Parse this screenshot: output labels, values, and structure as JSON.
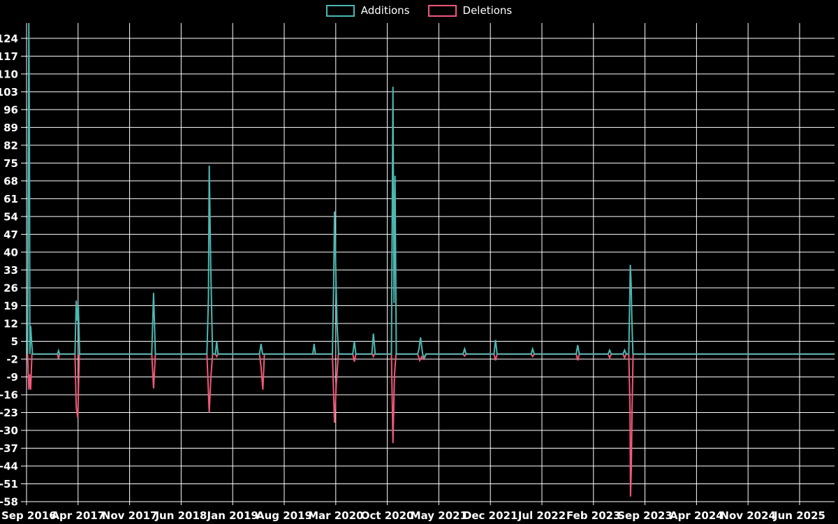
{
  "legend": {
    "items": [
      {
        "label": "Additions",
        "color": "#4bb8b1"
      },
      {
        "label": "Deletions",
        "color": "#f25878"
      }
    ]
  },
  "chart_data": {
    "type": "line",
    "title": "",
    "background": "#000000",
    "gridline_color": "#ffffff",
    "text_color": "#ffffff",
    "grid": true,
    "legend_position": "top-center",
    "x_axis": {
      "tick_labels": [
        "Sep 2016",
        "Apr 2017",
        "Nov 2017",
        "Jun 2018",
        "Jan 2019",
        "Aug 2019",
        "Mar 2020",
        "Oct 2020",
        "May 2021",
        "Dec 2021",
        "Jul 2022",
        "Feb 2023",
        "Sep 2023",
        "Apr 2024",
        "Nov 2024",
        "Jun 2025"
      ],
      "months_per_tick": 7
    },
    "y_axis": {
      "tick_values": [
        124,
        117,
        110,
        103,
        96,
        89,
        82,
        75,
        68,
        61,
        54,
        47,
        40,
        33,
        26,
        19,
        12,
        5,
        -2,
        -9,
        -16,
        -23,
        -30,
        -37,
        -44,
        -51,
        -58
      ],
      "tick_step": 7,
      "ylim": [
        -58,
        130
      ]
    },
    "series": [
      {
        "name": "Additions",
        "color": "#4bb8b1",
        "baseline": 0,
        "points": [
          [
            0.02,
            0
          ],
          [
            0.045,
            130
          ],
          [
            0.055,
            87
          ],
          [
            0.065,
            0
          ],
          [
            0.08,
            11
          ],
          [
            0.095,
            6
          ],
          [
            0.115,
            0
          ],
          [
            0.6,
            0
          ],
          [
            0.62,
            1.3
          ],
          [
            0.64,
            0
          ],
          [
            0.94,
            0
          ],
          [
            0.965,
            21
          ],
          [
            0.985,
            13
          ],
          [
            1.005,
            19
          ],
          [
            1.03,
            0
          ],
          [
            2.43,
            0
          ],
          [
            2.465,
            24
          ],
          [
            2.5,
            0
          ],
          [
            3.5,
            0
          ],
          [
            3.53,
            22
          ],
          [
            3.545,
            74
          ],
          [
            3.575,
            34
          ],
          [
            3.61,
            0
          ],
          [
            3.665,
            0
          ],
          [
            3.69,
            5
          ],
          [
            3.715,
            0
          ],
          [
            4.52,
            0
          ],
          [
            4.55,
            4
          ],
          [
            4.58,
            0
          ],
          [
            5.555,
            0
          ],
          [
            5.58,
            4
          ],
          [
            5.605,
            0
          ],
          [
            5.935,
            0
          ],
          [
            5.96,
            27
          ],
          [
            5.975,
            56
          ],
          [
            6.0,
            33
          ],
          [
            6.025,
            12
          ],
          [
            6.055,
            0
          ],
          [
            6.33,
            0
          ],
          [
            6.36,
            5
          ],
          [
            6.39,
            0
          ],
          [
            6.7,
            0
          ],
          [
            6.73,
            8
          ],
          [
            6.765,
            0
          ],
          [
            7.08,
            0
          ],
          [
            7.11,
            105
          ],
          [
            7.13,
            20
          ],
          [
            7.15,
            70
          ],
          [
            7.175,
            0
          ],
          [
            7.59,
            0
          ],
          [
            7.615,
            2
          ],
          [
            7.645,
            6.5
          ],
          [
            7.685,
            0
          ],
          [
            7.715,
            -1.5
          ],
          [
            7.755,
            0
          ],
          [
            8.47,
            0
          ],
          [
            8.5,
            2
          ],
          [
            8.53,
            0
          ],
          [
            9.07,
            0
          ],
          [
            9.1,
            5.5
          ],
          [
            9.13,
            0
          ],
          [
            9.79,
            0
          ],
          [
            9.82,
            2
          ],
          [
            9.85,
            0
          ],
          [
            10.665,
            0
          ],
          [
            10.695,
            3.5
          ],
          [
            10.725,
            0
          ],
          [
            11.285,
            0
          ],
          [
            11.315,
            1.5
          ],
          [
            11.345,
            0
          ],
          [
            11.575,
            0
          ],
          [
            11.605,
            1.5
          ],
          [
            11.635,
            0
          ],
          [
            11.685,
            0
          ],
          [
            11.715,
            35
          ],
          [
            11.73,
            28
          ],
          [
            11.745,
            14
          ],
          [
            11.765,
            0
          ],
          [
            15.68,
            0
          ]
        ]
      },
      {
        "name": "Deletions",
        "color": "#f25878",
        "baseline": 0,
        "points": [
          [
            0.02,
            0
          ],
          [
            0.045,
            -14
          ],
          [
            0.06,
            -8
          ],
          [
            0.08,
            -14
          ],
          [
            0.105,
            0
          ],
          [
            0.6,
            0
          ],
          [
            0.62,
            -1.8
          ],
          [
            0.64,
            0
          ],
          [
            0.94,
            0
          ],
          [
            0.965,
            -21
          ],
          [
            0.995,
            -25
          ],
          [
            1.025,
            0
          ],
          [
            2.43,
            0
          ],
          [
            2.465,
            -13.5
          ],
          [
            2.5,
            0
          ],
          [
            3.5,
            0
          ],
          [
            3.545,
            -23
          ],
          [
            3.575,
            -10
          ],
          [
            3.61,
            0
          ],
          [
            3.665,
            0
          ],
          [
            3.69,
            -1
          ],
          [
            3.715,
            0
          ],
          [
            4.52,
            0
          ],
          [
            4.55,
            -5
          ],
          [
            4.585,
            -14
          ],
          [
            4.615,
            0
          ],
          [
            5.935,
            0
          ],
          [
            5.975,
            -27
          ],
          [
            6.01,
            -12
          ],
          [
            6.05,
            0
          ],
          [
            6.33,
            0
          ],
          [
            6.36,
            -3
          ],
          [
            6.39,
            0
          ],
          [
            6.71,
            0
          ],
          [
            6.73,
            -1
          ],
          [
            6.75,
            0
          ],
          [
            7.08,
            0
          ],
          [
            7.11,
            -35
          ],
          [
            7.14,
            -8
          ],
          [
            7.17,
            0
          ],
          [
            7.59,
            0
          ],
          [
            7.63,
            -2.5
          ],
          [
            7.67,
            -1
          ],
          [
            7.71,
            -2
          ],
          [
            7.75,
            0
          ],
          [
            8.47,
            0
          ],
          [
            8.5,
            -0.8
          ],
          [
            8.53,
            0
          ],
          [
            9.07,
            0
          ],
          [
            9.1,
            -2.5
          ],
          [
            9.13,
            0
          ],
          [
            9.79,
            0
          ],
          [
            9.82,
            -1
          ],
          [
            9.85,
            0
          ],
          [
            10.665,
            0
          ],
          [
            10.695,
            -2.5
          ],
          [
            10.725,
            0
          ],
          [
            11.285,
            0
          ],
          [
            11.315,
            -1.5
          ],
          [
            11.345,
            0
          ],
          [
            11.575,
            0
          ],
          [
            11.605,
            -1.5
          ],
          [
            11.635,
            0
          ],
          [
            11.685,
            0
          ],
          [
            11.71,
            -22
          ],
          [
            11.72,
            -56
          ],
          [
            11.735,
            -45
          ],
          [
            11.75,
            -22
          ],
          [
            11.77,
            0
          ],
          [
            15.68,
            0
          ]
        ]
      }
    ]
  }
}
